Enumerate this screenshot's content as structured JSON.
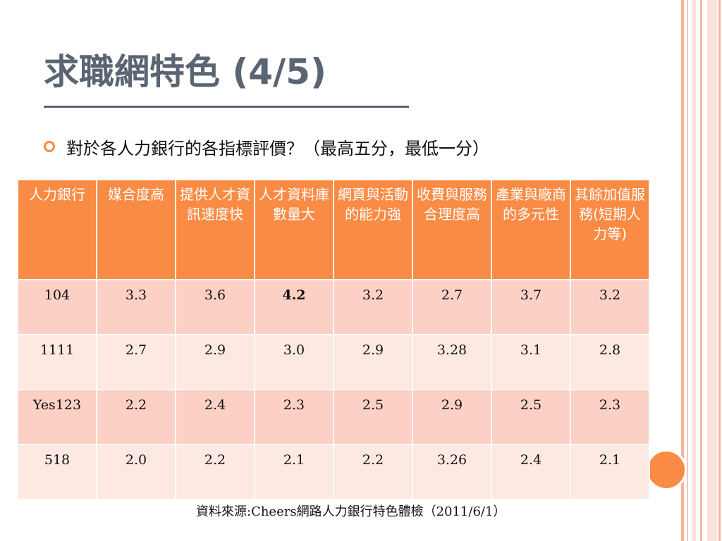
{
  "title": "求職網特色 (4/5)",
  "bullet": "對於各人力銀行的各指標評價？（最高五分，最低一分）",
  "table": {
    "headers": [
      "人力銀行",
      "媒合度高",
      "提供人才資訊速度快",
      "人才資料庫數量大",
      "網頁與活動的能力強",
      "收費與服務合理度高",
      "產業與廠商的多元性",
      "其餘加值服務(短期人力等)"
    ],
    "rows": [
      {
        "bank": "104",
        "values": [
          "3.3",
          "3.6",
          "4.2",
          "3.2",
          "2.7",
          "3.7",
          "3.2"
        ]
      },
      {
        "bank": "1111",
        "values": [
          "2.7",
          "2.9",
          "3.0",
          "2.9",
          "3.28",
          "3.1",
          "2.8"
        ]
      },
      {
        "bank": "Yes123",
        "values": [
          "2.2",
          "2.4",
          "2.3",
          "2.5",
          "2.9",
          "2.5",
          "2.3"
        ]
      },
      {
        "bank": "518",
        "values": [
          "2.0",
          "2.2",
          "2.1",
          "2.2",
          "3.26",
          "2.4",
          "2.1"
        ]
      }
    ]
  },
  "source": "資料來源:Cheers網路人力銀行特色體檢（2011/6/1）",
  "colors": {
    "accent": "#f98b45",
    "title": "#5a6473",
    "row_odd": "#fcd0c4",
    "row_even": "#fde8e2"
  }
}
